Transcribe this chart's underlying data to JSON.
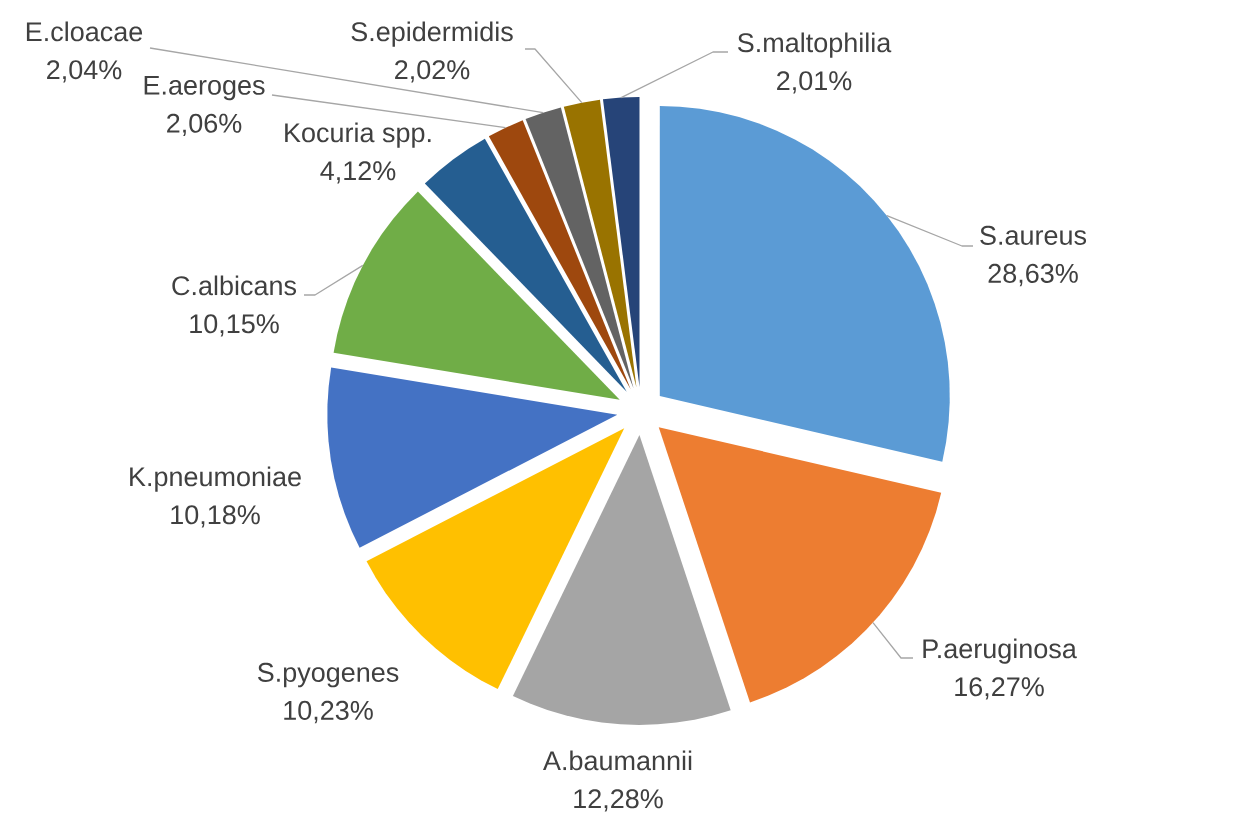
{
  "chart_data": {
    "type": "pie",
    "categories": [
      "S.aureus",
      "P.aeruginosa",
      "A.baumannii",
      "S.pyogenes",
      "K.pneumoniae",
      "C.albicans",
      "Kocuria spp.",
      "E.aeroges",
      "E.cloacae",
      "S.epidermidis",
      "S.maltophilia"
    ],
    "values": [
      28.63,
      16.27,
      12.28,
      10.23,
      10.18,
      10.15,
      4.12,
      2.06,
      2.04,
      2.02,
      2.01
    ],
    "value_labels": [
      "28,63%",
      "16,27%",
      "12,28%",
      "10,23%",
      "10,18%",
      "10,15%",
      "4,12%",
      "2,06%",
      "2,04%",
      "2,02%",
      "2,01%"
    ],
    "colors": [
      "#5b9bd5",
      "#ed7d31",
      "#a5a5a5",
      "#ffc000",
      "#4472c4",
      "#70ad47",
      "#255e91",
      "#9e480e",
      "#636363",
      "#997300",
      "#264478"
    ]
  }
}
